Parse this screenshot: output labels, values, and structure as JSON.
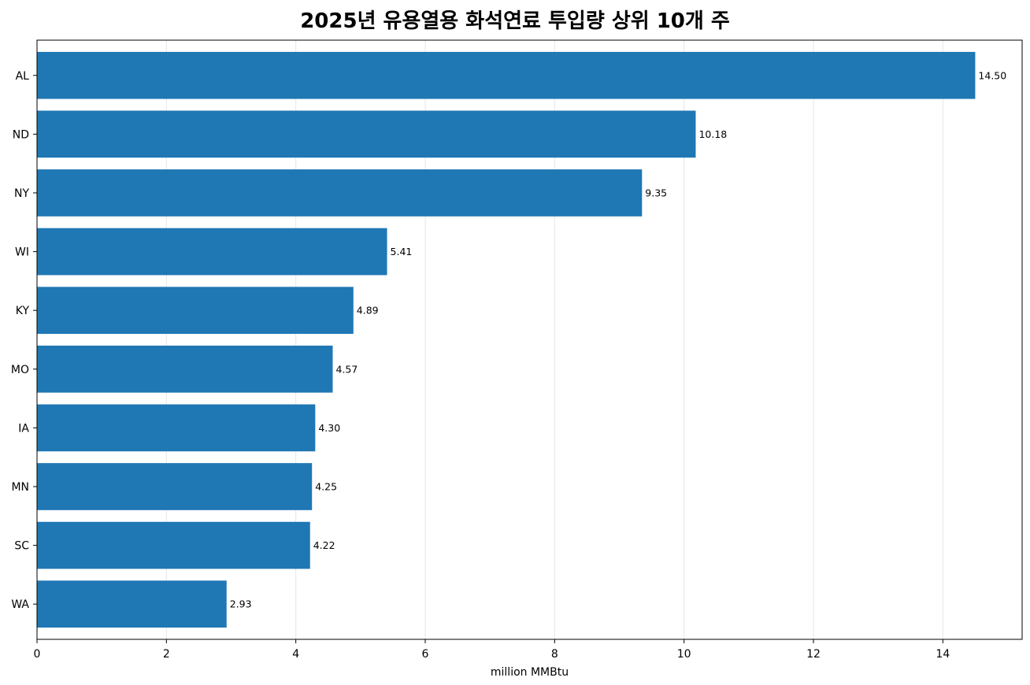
{
  "chart_data": {
    "type": "bar",
    "orientation": "horizontal",
    "title": "2025년 유용열용 화석연료 투입량 상위 10개 주",
    "xlabel": "million MMBtu",
    "ylabel": "",
    "categories": [
      "AL",
      "ND",
      "NY",
      "WI",
      "KY",
      "MO",
      "IA",
      "MN",
      "SC",
      "WA"
    ],
    "values": [
      14.5,
      10.18,
      9.35,
      5.41,
      4.89,
      4.57,
      4.3,
      4.25,
      4.22,
      2.93
    ],
    "value_labels": [
      "14.50",
      "10.18",
      "9.35",
      "5.41",
      "4.89",
      "4.57",
      "4.30",
      "4.25",
      "4.22",
      "2.93"
    ],
    "xlim": [
      0,
      15.225
    ],
    "xticks": [
      0,
      2,
      4,
      6,
      8,
      10,
      12,
      14
    ],
    "xtick_labels": [
      "0",
      "2",
      "4",
      "6",
      "8",
      "10",
      "12",
      "14"
    ],
    "grid": "x",
    "bar_color": "#1f77b4",
    "grid_color": "#e6e6e6"
  }
}
